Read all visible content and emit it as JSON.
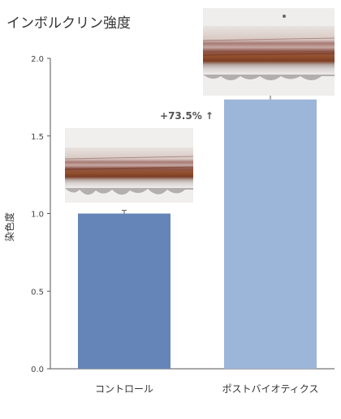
{
  "chart_data": {
    "type": "bar",
    "title": "インボルクリン強度",
    "ylabel": "染色度",
    "xlabel": "",
    "ylim": [
      0,
      2.0
    ],
    "yticks": [
      "0.0",
      "0.5",
      "1.0",
      "1.5",
      "2.0"
    ],
    "categories": [
      "コントロール",
      "ポストバイオティクス"
    ],
    "values": [
      1.0,
      1.735
    ],
    "errors": [
      0.02,
      0.03
    ],
    "colors": [
      "#6585b8",
      "#9cb6d9"
    ],
    "annotation": "+73.5% ↑"
  }
}
